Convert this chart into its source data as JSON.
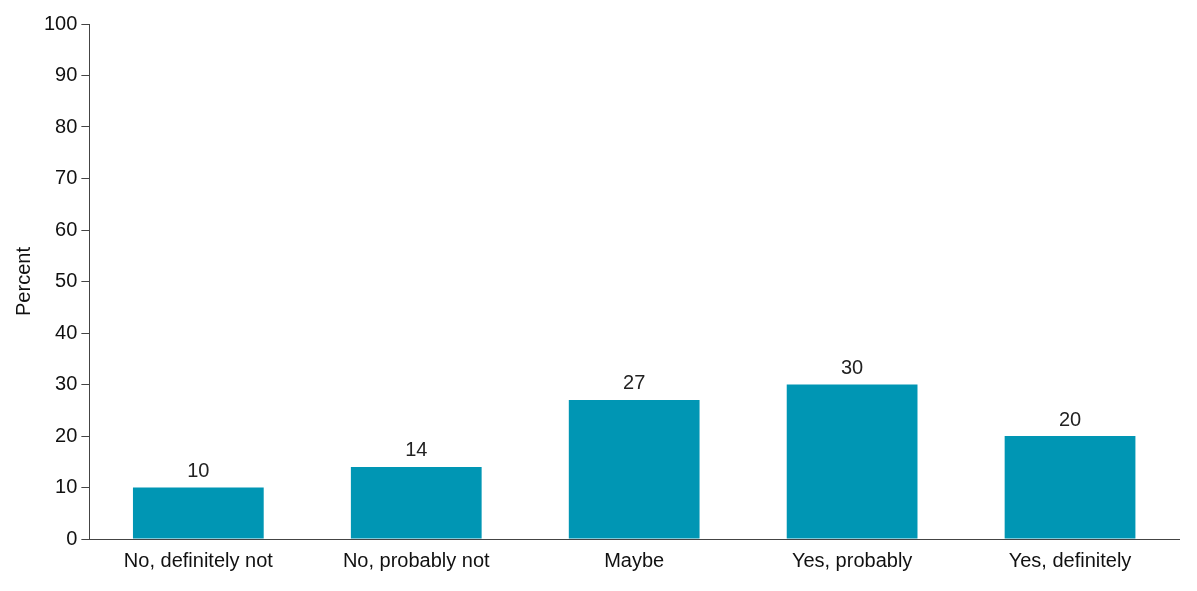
{
  "chart_data": {
    "type": "bar",
    "ylabel": "Percent",
    "categories": [
      "No, definitely not",
      "No, probably not",
      "Maybe",
      "Yes, probably",
      "Yes, definitely"
    ],
    "values": [
      10,
      14,
      27,
      30,
      20
    ],
    "color": "#0096b4",
    "ylim": [
      0,
      100
    ],
    "yticks": [
      0,
      10,
      20,
      30,
      40,
      50,
      60,
      70,
      80,
      90,
      100
    ],
    "grid": false,
    "legend": false,
    "data_labels": true
  }
}
